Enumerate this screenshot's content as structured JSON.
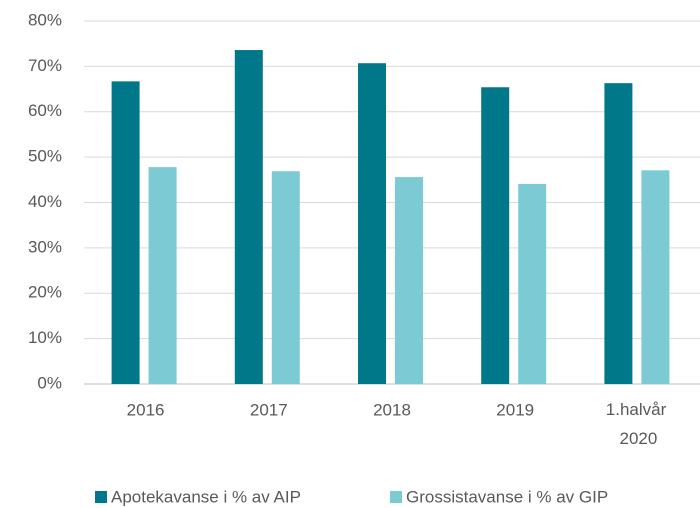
{
  "chart_data": {
    "type": "bar",
    "categories": [
      "2016",
      "2017",
      "2018",
      "2019",
      "1.halvår 2020"
    ],
    "series": [
      {
        "name": "Apotekavanse i % av AIP",
        "color": "#00788a",
        "values": [
          66.7,
          73.6,
          70.7,
          65.4,
          66.3
        ]
      },
      {
        "name": "Grossistavanse i % av GIP",
        "color": "#7ccbd4",
        "values": [
          47.8,
          46.9,
          45.6,
          44.1,
          47.1
        ]
      }
    ],
    "ylim": [
      0,
      80
    ],
    "yticks": [
      {
        "value": 0,
        "label": "0%"
      },
      {
        "value": 10,
        "label": "10%"
      },
      {
        "value": 20,
        "label": "20%"
      },
      {
        "value": 30,
        "label": "30%"
      },
      {
        "value": 40,
        "label": "40%"
      },
      {
        "value": 50,
        "label": "50%"
      },
      {
        "value": 60,
        "label": "60%"
      },
      {
        "value": 70,
        "label": "70%"
      },
      {
        "value": 80,
        "label": "80%"
      }
    ],
    "grid": true,
    "legend": "bottom"
  }
}
